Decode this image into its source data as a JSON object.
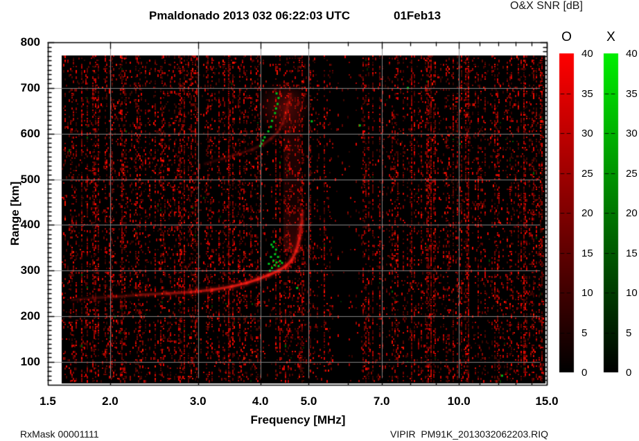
{
  "title": {
    "main": "Pmaldonado 2013 032 06:22:03 UTC",
    "date": "01Feb13"
  },
  "footer": {
    "left": "RxMask 00001111",
    "right": "VIPIR  PM91K_2013032062203.RIQ"
  },
  "axes": {
    "x": {
      "label": "Frequency [MHz]",
      "scale": "log",
      "min": 1.5,
      "max": 15.0,
      "ticks": [
        {
          "v": 1.5,
          "t": "1.5"
        },
        {
          "v": 2,
          "t": "2.0"
        },
        {
          "v": 3,
          "t": "3.0"
        },
        {
          "v": 4,
          "t": "4.0"
        },
        {
          "v": 5,
          "t": "5.0"
        },
        {
          "v": 7,
          "t": "7.0"
        },
        {
          "v": 10,
          "t": "10.0"
        },
        {
          "v": 15,
          "t": "15.0"
        }
      ],
      "minor_ticks": [
        2,
        3,
        4,
        5,
        6,
        7,
        8,
        9,
        10,
        11,
        12,
        13,
        14,
        15
      ],
      "gridlines": [
        2,
        3,
        4,
        5,
        7,
        10
      ]
    },
    "y": {
      "label": "Range [km]",
      "scale": "linear",
      "min": 50,
      "max": 800,
      "ticks": [
        {
          "v": 800,
          "t": "800"
        },
        {
          "v": 700,
          "t": "700"
        },
        {
          "v": 600,
          "t": "600"
        },
        {
          "v": 500,
          "t": "500"
        },
        {
          "v": 400,
          "t": "400"
        },
        {
          "v": 300,
          "t": "300"
        },
        {
          "v": 200,
          "t": "200"
        },
        {
          "v": 100,
          "t": "100"
        }
      ],
      "minor_step": 10,
      "gridlines": [
        100,
        200,
        300,
        400,
        500,
        600,
        700
      ]
    }
  },
  "colorbars": {
    "header": "O&X SNR [dB]",
    "bars": [
      {
        "label": "O",
        "color_top": "#ff0000",
        "color_bottom": "#000000",
        "max": 40,
        "min": 0,
        "tick_labels": [
          "40",
          "35",
          "30",
          "25",
          "20",
          "15",
          "10",
          "5",
          "0"
        ],
        "dash_values": [
          35,
          30,
          25,
          20,
          15,
          10,
          5
        ]
      },
      {
        "label": "X",
        "color_top": "#00ee00",
        "color_bottom": "#000000",
        "max": 40,
        "min": 0,
        "tick_labels": [
          "40",
          "35",
          "30",
          "25",
          "20",
          "15",
          "10",
          "5",
          "0"
        ],
        "dash_values": [
          35,
          30,
          25,
          20,
          15,
          10,
          5
        ]
      }
    ]
  },
  "chart_data": {
    "type": "heatmap",
    "title": "Pmaldonado 2013 032 06:22:03 UTC 01Feb13",
    "xlabel": "Frequency [MHz]",
    "ylabel": "Range [km]",
    "x_range_mhz": [
      1.5,
      15.0
    ],
    "x_scale": "log",
    "y_range_km": [
      50,
      800
    ],
    "value_label": "O&X SNR [dB]",
    "value_range_db": [
      0,
      40
    ],
    "background": "#000000",
    "data_extent": {
      "f_mhz": [
        1.6,
        14.9
      ],
      "km": [
        53,
        771
      ]
    },
    "o_mode_color": "#ff2019",
    "x_mode_color": "#00c41c",
    "first_hop_trace": [
      [
        1.68,
        236
      ],
      [
        1.85,
        240
      ],
      [
        2.05,
        243
      ],
      [
        2.3,
        247
      ],
      [
        2.6,
        250
      ],
      [
        2.9,
        253
      ],
      [
        3.2,
        258
      ],
      [
        3.5,
        265
      ],
      [
        3.75,
        273
      ],
      [
        3.95,
        281
      ],
      [
        4.15,
        290
      ],
      [
        4.35,
        300
      ],
      [
        4.5,
        310
      ],
      [
        4.62,
        323
      ],
      [
        4.72,
        343
      ],
      [
        4.79,
        371
      ],
      [
        4.83,
        400
      ],
      [
        4.86,
        428
      ]
    ],
    "first_hop_intensity": [
      0.15,
      0.2,
      0.25,
      0.35,
      0.5,
      0.6,
      0.75,
      0.9,
      1.0,
      1.0,
      1.0,
      1.0,
      0.95,
      0.9,
      0.85,
      0.75,
      0.6,
      0.45
    ],
    "second_hop_trace": [
      [
        3.1,
        534
      ],
      [
        3.35,
        545
      ],
      [
        3.6,
        555
      ],
      [
        3.85,
        565
      ],
      [
        4.05,
        577
      ],
      [
        4.2,
        589
      ],
      [
        4.33,
        603
      ],
      [
        4.43,
        622
      ],
      [
        4.5,
        645
      ],
      [
        4.56,
        668
      ],
      [
        4.6,
        685
      ]
    ],
    "second_hop_intensity": [
      0.25,
      0.3,
      0.35,
      0.4,
      0.45,
      0.5,
      0.5,
      0.5,
      0.5,
      0.45,
      0.4
    ],
    "spread_band": {
      "f_range": [
        4.45,
        4.82
      ],
      "km_range": [
        340,
        700
      ]
    },
    "second_hop_blob": {
      "f": 4.45,
      "km": 658
    },
    "x_mode_points_f_peak": [
      [
        4.18,
        300
      ],
      [
        4.22,
        306
      ],
      [
        4.27,
        312
      ],
      [
        4.31,
        318
      ],
      [
        4.25,
        322
      ],
      [
        4.2,
        330
      ],
      [
        4.28,
        336
      ],
      [
        4.34,
        330
      ],
      [
        4.38,
        321
      ],
      [
        4.3,
        346
      ],
      [
        4.24,
        352
      ],
      [
        4.35,
        310
      ],
      [
        4.42,
        317
      ],
      [
        4.16,
        315
      ],
      [
        4.21,
        357
      ],
      [
        4.26,
        363
      ]
    ],
    "x_mode_points_second_hop": [
      [
        4.02,
        578
      ],
      [
        4.05,
        585
      ],
      [
        4.08,
        592
      ],
      [
        4.0,
        573
      ],
      [
        4.15,
        605
      ],
      [
        4.2,
        615
      ],
      [
        4.22,
        628
      ],
      [
        4.28,
        645
      ],
      [
        4.3,
        655
      ],
      [
        4.33,
        665
      ],
      [
        4.35,
        678
      ],
      [
        4.31,
        688
      ]
    ],
    "x_mode_singles": [
      [
        4.74,
        262
      ],
      [
        5.07,
        627
      ],
      [
        6.33,
        618
      ],
      [
        7.9,
        700
      ],
      [
        12.2,
        70
      ]
    ],
    "noise": {
      "seed": 1302,
      "base": 0.05,
      "spread": 0.55,
      "pow": 2.3,
      "burst_fraction": 0.1,
      "burst_gain": 2.0,
      "green_fraction": 0.006,
      "density_bands": [
        {
          "f": [
            5.0,
            5.6
          ],
          "k": 0.5
        },
        {
          "f": [
            5.6,
            6.35
          ],
          "k": 0.08
        },
        {
          "f": [
            6.5,
            15.0
          ],
          "k": 0.85
        }
      ]
    }
  }
}
